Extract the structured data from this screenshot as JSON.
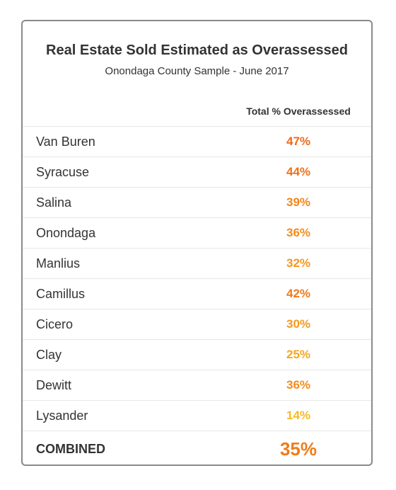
{
  "chart_data": {
    "type": "table",
    "title": "Real Estate Sold Estimated as Overassessed",
    "subtitle": "Onondaga County Sample - June 2017",
    "column_header": "Total % Overassessed",
    "rows": [
      {
        "name": "Van Buren",
        "value": 47,
        "label": "47%",
        "color": "#ec6a1c"
      },
      {
        "name": "Syracuse",
        "value": 44,
        "label": "44%",
        "color": "#ee721b"
      },
      {
        "name": "Salina",
        "value": 39,
        "label": "39%",
        "color": "#f2851b"
      },
      {
        "name": "Onondaga",
        "value": 36,
        "label": "36%",
        "color": "#f48c1b"
      },
      {
        "name": "Manlius",
        "value": 32,
        "label": "32%",
        "color": "#f6961c"
      },
      {
        "name": "Camillus",
        "value": 42,
        "label": "42%",
        "color": "#ef7a1b"
      },
      {
        "name": "Cicero",
        "value": 30,
        "label": "30%",
        "color": "#f59a1c"
      },
      {
        "name": "Clay",
        "value": 25,
        "label": "25%",
        "color": "#f7a51d"
      },
      {
        "name": "Dewitt",
        "value": 36,
        "label": "36%",
        "color": "#f48c1b"
      },
      {
        "name": "Lysander",
        "value": 14,
        "label": "14%",
        "color": "#f8bb1e"
      }
    ],
    "combined": {
      "name": "COMBINED",
      "value": 35,
      "label": "35%",
      "color": "#f07c1a"
    }
  }
}
